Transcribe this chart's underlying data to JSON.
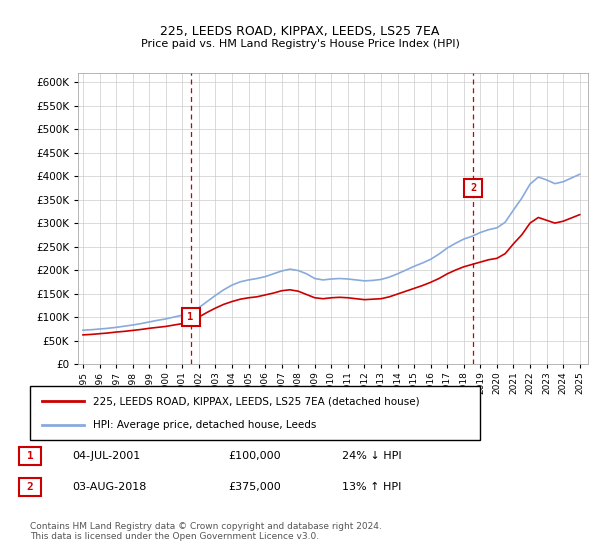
{
  "title": "225, LEEDS ROAD, KIPPAX, LEEDS, LS25 7EA",
  "subtitle": "Price paid vs. HM Land Registry's House Price Index (HPI)",
  "ylim": [
    0,
    620000
  ],
  "yticks": [
    0,
    50000,
    100000,
    150000,
    200000,
    250000,
    300000,
    350000,
    400000,
    450000,
    500000,
    550000,
    600000
  ],
  "xlim_start": 1994.7,
  "xlim_end": 2025.5,
  "sale1_x": 2001.5,
  "sale1_y": 100000,
  "sale1_label": "1",
  "sale2_x": 2018.58,
  "sale2_y": 375000,
  "sale2_label": "2",
  "red_color": "#cc0000",
  "blue_color": "#88aadd",
  "background_color": "#ffffff",
  "grid_color": "#cccccc",
  "legend_line1": "225, LEEDS ROAD, KIPPAX, LEEDS, LS25 7EA (detached house)",
  "legend_line2": "HPI: Average price, detached house, Leeds",
  "annotation1_num": "1",
  "annotation1_date": "04-JUL-2001",
  "annotation1_price": "£100,000",
  "annotation1_hpi": "24% ↓ HPI",
  "annotation2_num": "2",
  "annotation2_date": "03-AUG-2018",
  "annotation2_price": "£375,000",
  "annotation2_hpi": "13% ↑ HPI",
  "footnote": "Contains HM Land Registry data © Crown copyright and database right 2024.\nThis data is licensed under the Open Government Licence v3.0.",
  "years_hpi": [
    1995,
    1995.5,
    1996,
    1996.5,
    1997,
    1997.5,
    1998,
    1998.5,
    1999,
    1999.5,
    2000,
    2000.5,
    2001,
    2001.5,
    2002,
    2002.5,
    2003,
    2003.5,
    2004,
    2004.5,
    2005,
    2005.5,
    2006,
    2006.5,
    2007,
    2007.5,
    2008,
    2008.5,
    2009,
    2009.5,
    2010,
    2010.5,
    2011,
    2011.5,
    2012,
    2012.5,
    2013,
    2013.5,
    2014,
    2014.5,
    2015,
    2015.5,
    2016,
    2016.5,
    2017,
    2017.5,
    2018,
    2018.5,
    2019,
    2019.5,
    2020,
    2020.5,
    2021,
    2021.5,
    2022,
    2022.5,
    2023,
    2023.5,
    2024,
    2024.5,
    2025
  ],
  "hpi_values": [
    72000,
    73000,
    74500,
    76000,
    78000,
    80500,
    83000,
    86000,
    89500,
    93000,
    96000,
    100000,
    104000,
    109000,
    120000,
    133000,
    146000,
    158000,
    168000,
    175000,
    179000,
    182000,
    186000,
    192000,
    198000,
    202000,
    199000,
    192000,
    182000,
    179000,
    181000,
    182000,
    181000,
    179000,
    177000,
    178000,
    180000,
    185000,
    192000,
    200000,
    208000,
    215000,
    223000,
    234000,
    247000,
    257000,
    266000,
    272000,
    280000,
    286000,
    290000,
    302000,
    328000,
    353000,
    383000,
    398000,
    392000,
    384000,
    388000,
    396000,
    404000
  ],
  "red_values": [
    62000,
    63000,
    64500,
    66000,
    68000,
    69500,
    71500,
    73500,
    76000,
    78000,
    80000,
    83000,
    86000,
    90000,
    100000,
    110000,
    119000,
    127000,
    133000,
    138000,
    141000,
    143000,
    147000,
    151000,
    156000,
    158000,
    155000,
    148000,
    141000,
    139000,
    141000,
    142000,
    141000,
    139000,
    137000,
    138000,
    139000,
    143000,
    149000,
    155000,
    161000,
    167000,
    174000,
    182000,
    192000,
    200000,
    207000,
    212000,
    217000,
    222000,
    225000,
    235000,
    256000,
    275000,
    300000,
    312000,
    306000,
    300000,
    304000,
    311000,
    318000
  ]
}
